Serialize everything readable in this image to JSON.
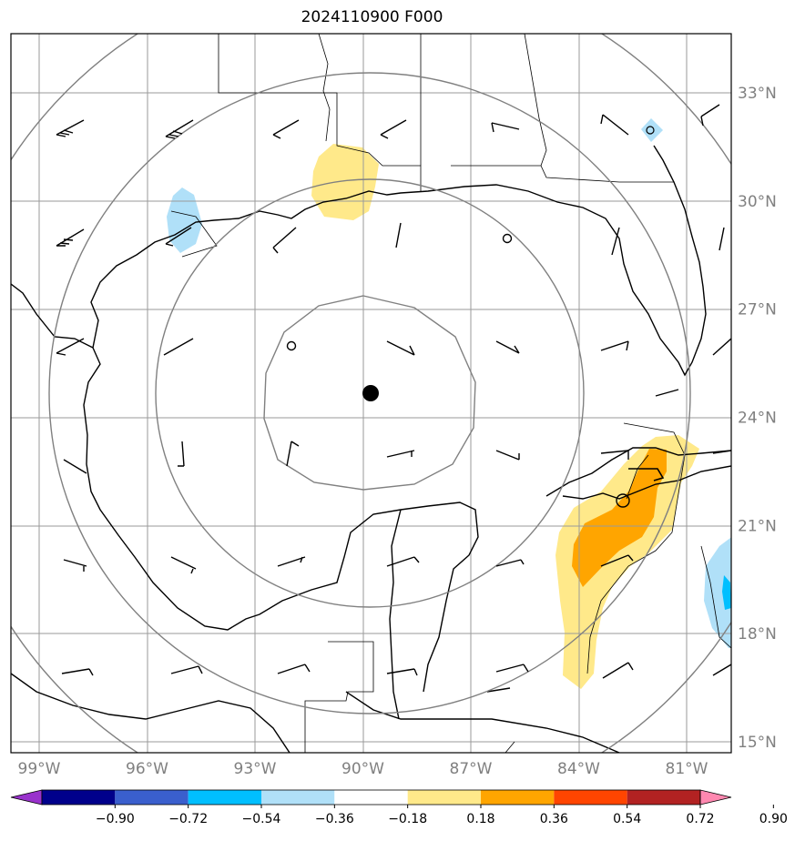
{
  "chart_data": {
    "type": "contour-map",
    "title": "2024110900 F000",
    "lat_ticks": [
      {
        "label": "33°N",
        "lat": 33
      },
      {
        "label": "30°N",
        "lat": 30
      },
      {
        "label": "27°N",
        "lat": 27
      },
      {
        "label": "24°N",
        "lat": 24
      },
      {
        "label": "21°N",
        "lat": 21
      },
      {
        "label": "18°N",
        "lat": 18
      },
      {
        "label": "15°N",
        "lat": 15
      }
    ],
    "lon_ticks": [
      {
        "label": "99°W",
        "lon": -99
      },
      {
        "label": "96°W",
        "lon": -96
      },
      {
        "label": "93°W",
        "lon": -93
      },
      {
        "label": "90°W",
        "lon": -90
      },
      {
        "label": "87°W",
        "lon": -87
      },
      {
        "label": "84°W",
        "lon": -84
      },
      {
        "label": "81°W",
        "lon": -81
      }
    ],
    "extent": {
      "lon": [
        -99.8,
        -79.8
      ],
      "lat": [
        14.8,
        34.6
      ]
    },
    "center": {
      "lon": -89.8,
      "lat": 24.7
    },
    "colorbar": {
      "levels": [
        "−0.90",
        "−0.72",
        "−0.54",
        "−0.36",
        "−0.18",
        "0.18",
        "0.36",
        "0.54",
        "0.72",
        "0.90"
      ],
      "colors": [
        "#9932cc",
        "#00008b",
        "#3a5fcd",
        "#00bfff",
        "#b0e0f8",
        "#ffffff",
        "#ffe98a",
        "#ffa500",
        "#ff4500",
        "#b22222",
        "#ff88b0"
      ],
      "extend": "both"
    },
    "grid": true
  }
}
